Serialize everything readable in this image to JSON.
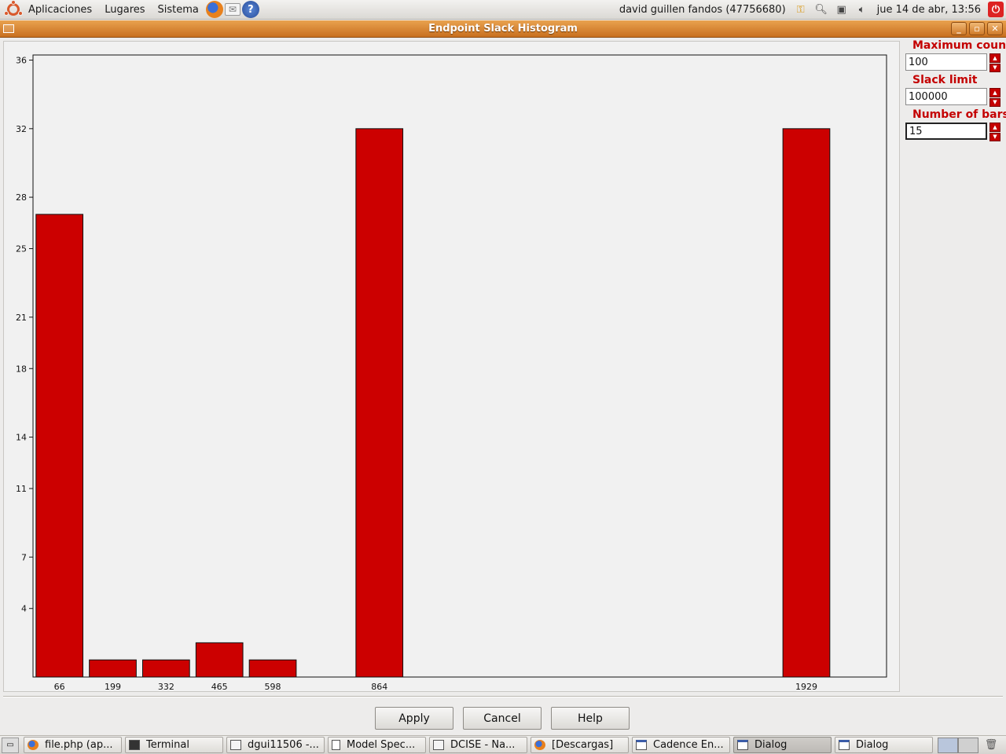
{
  "top_panel": {
    "menus": [
      "Aplicaciones",
      "Lugares",
      "Sistema"
    ],
    "user": "david guillen fandos (47756680)",
    "clock": "jue 14 de abr, 13:56"
  },
  "window": {
    "title": "Endpoint Slack Histogram"
  },
  "controls": {
    "max_count_label": "Maximum count",
    "max_count_value": "100",
    "slack_limit_label": "Slack limit",
    "slack_limit_value": "100000",
    "num_bars_label": "Number of bars",
    "num_bars_value": "15"
  },
  "buttons": {
    "apply": "Apply",
    "cancel": "Cancel",
    "help": "Help"
  },
  "taskbar": {
    "tasks": [
      "file.php (ap...",
      "Terminal",
      "dgui11506 -...",
      "Model Spec...",
      "DCISE - Na...",
      "[Descargas]",
      "Cadence En...",
      "Dialog",
      "Dialog"
    ]
  },
  "colors": {
    "bar": "#cc0000",
    "accent_label": "#c40000",
    "titlebar": "#d9822f"
  },
  "chart_data": {
    "type": "bar",
    "title": "",
    "xlabel": "",
    "ylabel": "",
    "yticks": [
      4,
      7,
      11,
      14,
      18,
      21,
      25,
      28,
      32,
      36
    ],
    "ylim": [
      0,
      36.3
    ],
    "xlim": [
      0,
      2129
    ],
    "bin_width": 133,
    "tick_labels": [
      "66",
      "199",
      "332",
      "465",
      "598",
      "864",
      "1929"
    ],
    "bars": [
      {
        "x": 66,
        "value": 27
      },
      {
        "x": 199,
        "value": 1
      },
      {
        "x": 332,
        "value": 1
      },
      {
        "x": 465,
        "value": 2
      },
      {
        "x": 598,
        "value": 1
      },
      {
        "x": 864,
        "value": 32
      },
      {
        "x": 1929,
        "value": 32
      }
    ]
  }
}
